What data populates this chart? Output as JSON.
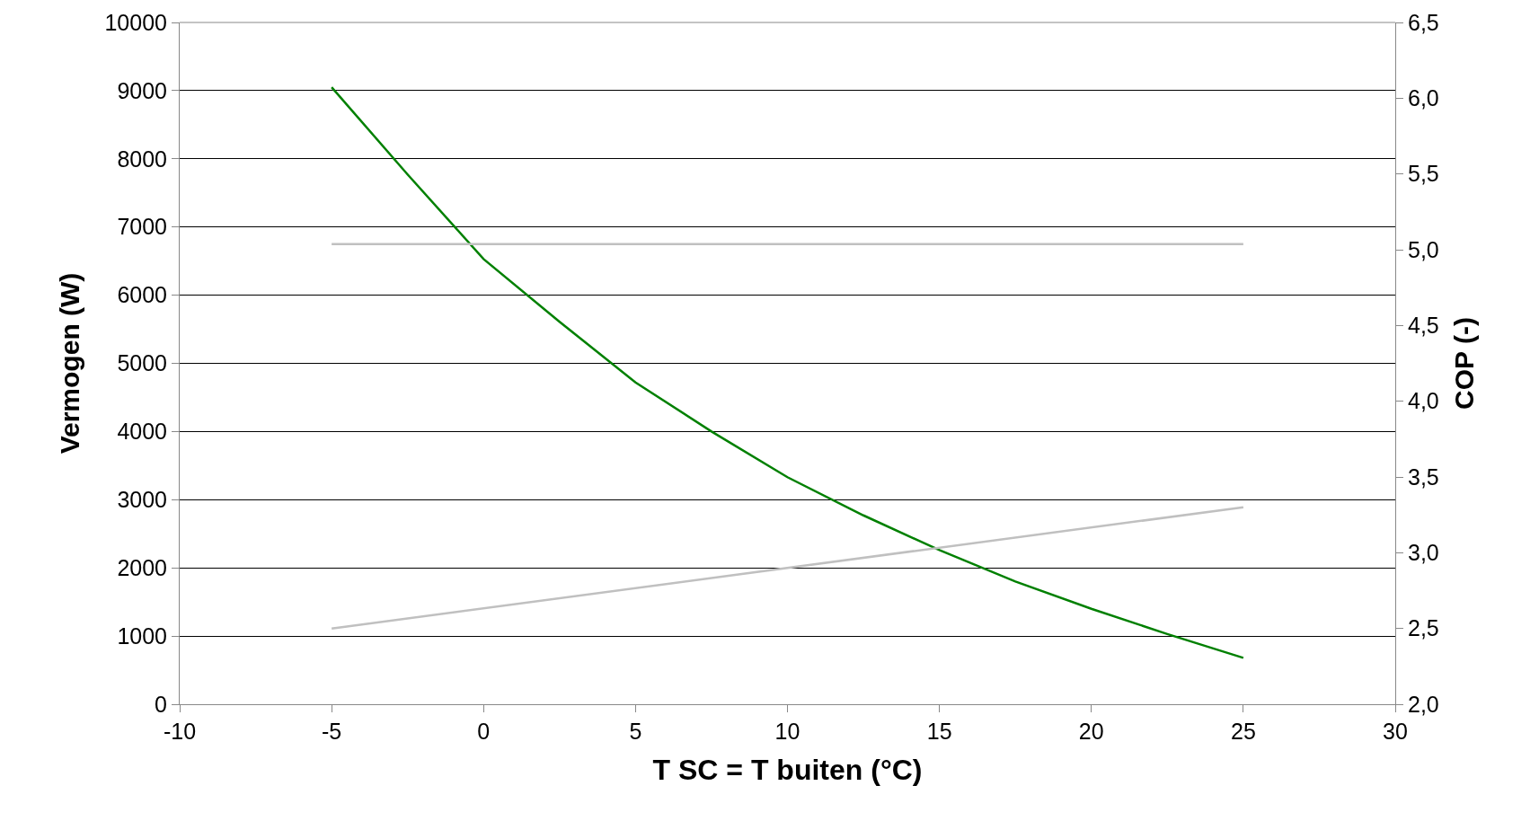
{
  "chart_data": {
    "type": "line",
    "xlabel": "T SC = T buiten (°C)",
    "ylabel": "Vermogen (W)",
    "y2label": "COP (-)",
    "xlim": [
      -10,
      30
    ],
    "xticks": [
      -10,
      -5,
      0,
      5,
      10,
      15,
      20,
      25,
      30
    ],
    "ylim": [
      0,
      10000
    ],
    "yticks": [
      0,
      1000,
      2000,
      3000,
      4000,
      5000,
      6000,
      7000,
      8000,
      9000,
      10000
    ],
    "y2lim": [
      2,
      6.5
    ],
    "y2ticks": [
      {
        "value": 2,
        "label": "2,0"
      },
      {
        "value": 2.5,
        "label": "2,5"
      },
      {
        "value": 3,
        "label": "3,0"
      },
      {
        "value": 3.5,
        "label": "3,5"
      },
      {
        "value": 4,
        "label": "4,0"
      },
      {
        "value": 4.5,
        "label": "4,5"
      },
      {
        "value": 5,
        "label": "5,0"
      },
      {
        "value": 5.5,
        "label": "5,5"
      },
      {
        "value": 6,
        "label": "6,0"
      },
      {
        "value": 6.5,
        "label": "6,5"
      }
    ],
    "grid": "y",
    "marker": "none",
    "line_style": "solid",
    "series": [
      {
        "color": "#008000",
        "x": [
          -5,
          -2.5,
          0,
          2.5,
          5,
          7.5,
          10,
          12.5,
          15,
          17.5,
          20,
          22.5,
          25
        ],
        "values": [
          9050,
          7770,
          6530,
          5610,
          4720,
          4000,
          3330,
          2770,
          2260,
          1800,
          1400,
          1030,
          680
        ]
      },
      {
        "color": "#c0c0c0",
        "x": [
          -5,
          25
        ],
        "values": [
          6750,
          6750
        ]
      },
      {
        "color": "#c0c0c0",
        "axis": "y2",
        "x": [
          -5,
          25
        ],
        "values": [
          2.5,
          3.3
        ]
      }
    ]
  }
}
